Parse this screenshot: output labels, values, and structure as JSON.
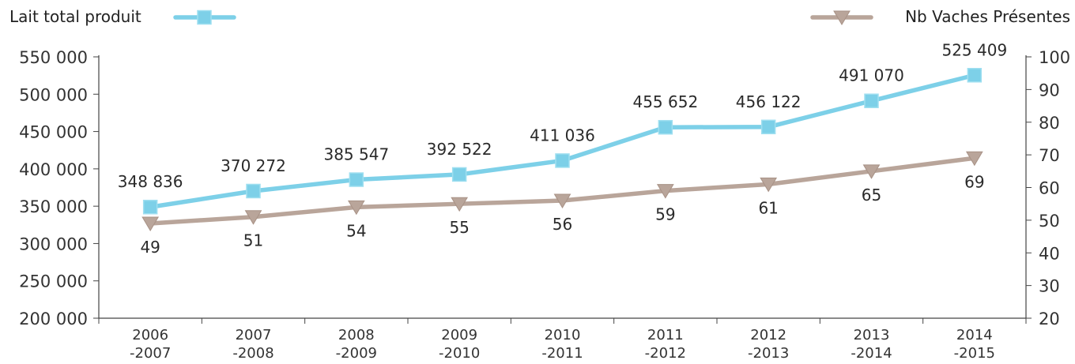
{
  "chart_data": {
    "type": "line",
    "categories": [
      "2006\n-2007",
      "2007\n-2008",
      "2008\n-2009",
      "2009\n-2010",
      "2010\n-2011",
      "2011\n-2012",
      "2012\n-2013",
      "2013\n-2014",
      "2014\n-2015"
    ],
    "series": [
      {
        "name": "Lait total produit",
        "axis": "left",
        "color": "#7dd0e8",
        "marker": "square",
        "values": [
          348836,
          370272,
          385547,
          392522,
          411036,
          455652,
          456122,
          491070,
          525409
        ],
        "labels": [
          "348 836",
          "370 272",
          "385 547",
          "392 522",
          "411 036",
          "455 652",
          "456 122",
          "491 070",
          "525 409"
        ]
      },
      {
        "name": "Nb Vaches Présentes",
        "axis": "right",
        "color": "#b9a59a",
        "marker": "triangle-down",
        "values": [
          49,
          51,
          54,
          55,
          56,
          59,
          61,
          65,
          69
        ],
        "labels": [
          "49",
          "51",
          "54",
          "55",
          "56",
          "59",
          "61",
          "65",
          "69"
        ]
      }
    ],
    "y_left": {
      "lim": [
        200000,
        550000
      ],
      "ticks": [
        200000,
        250000,
        300000,
        350000,
        400000,
        450000,
        500000,
        550000
      ],
      "tick_labels": [
        "200 000",
        "250 000",
        "300 000",
        "350 000",
        "400 000",
        "450 000",
        "500 000",
        "550 000"
      ]
    },
    "y_right": {
      "lim": [
        20,
        100
      ],
      "ticks": [
        20,
        30,
        40,
        50,
        60,
        70,
        80,
        90,
        100
      ],
      "tick_labels": [
        "20",
        "30",
        "40",
        "50",
        "60",
        "70",
        "80",
        "90",
        "100"
      ]
    },
    "grid": false,
    "legend": {
      "placement": "top",
      "left_entry": "Lait total produit",
      "right_entry": "Nb Vaches Présentes"
    }
  }
}
